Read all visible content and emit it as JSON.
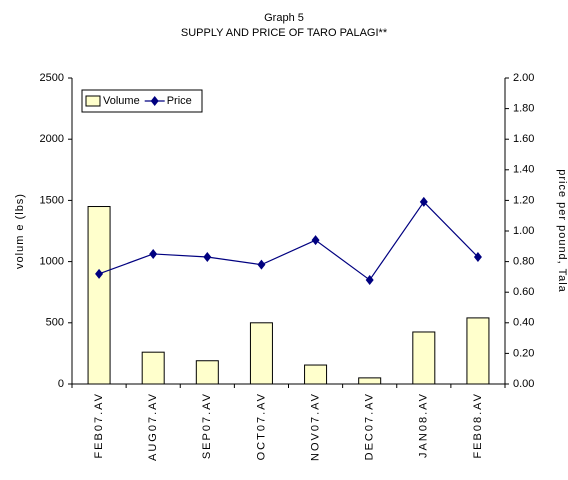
{
  "chart_data": {
    "type": "bar_line",
    "title": "Graph 5",
    "subtitle": "SUPPLY AND PRICE OF TARO PALAGI**",
    "categories": [
      "FEB07.AV",
      "AUG07.AV",
      "SEP07.AV",
      "OCT07.AV",
      "NOV07.AV",
      "DEC07.AV",
      "JAN08.AV",
      "FEB08.AV"
    ],
    "series": [
      {
        "name": "Volume",
        "type": "bar",
        "color": "#ffffcc",
        "values": [
          1450,
          260,
          190,
          500,
          155,
          50,
          425,
          540
        ]
      },
      {
        "name": "Price",
        "type": "line",
        "axis": "y2",
        "color": "#000080",
        "values": [
          0.72,
          0.85,
          0.83,
          0.78,
          0.94,
          0.68,
          1.19,
          0.83
        ]
      }
    ],
    "ylabel": "volum e (lbs)",
    "y2label": "price per pound, Tala",
    "ylim": [
      0,
      2500
    ],
    "yticks": [
      0,
      500,
      1000,
      1500,
      2000,
      2500
    ],
    "y2lim": [
      0,
      2
    ],
    "y2ticks": [
      {
        "value": 0,
        "label": "0.00"
      },
      {
        "value": 0.2,
        "label": "0.20"
      },
      {
        "value": 0.4,
        "label": "0.40"
      },
      {
        "value": 0.6,
        "label": "0.60"
      },
      {
        "value": 0.8,
        "label": "0.80"
      },
      {
        "value": 1,
        "label": "1.00"
      },
      {
        "value": 1.2,
        "label": "1.20"
      },
      {
        "value": 1.4,
        "label": "1.40"
      },
      {
        "value": 1.6,
        "label": "1.60"
      },
      {
        "value": 1.8,
        "label": "1.80"
      },
      {
        "value": 2,
        "label": "2.00"
      }
    ],
    "legend": "top-left",
    "grid": false
  }
}
